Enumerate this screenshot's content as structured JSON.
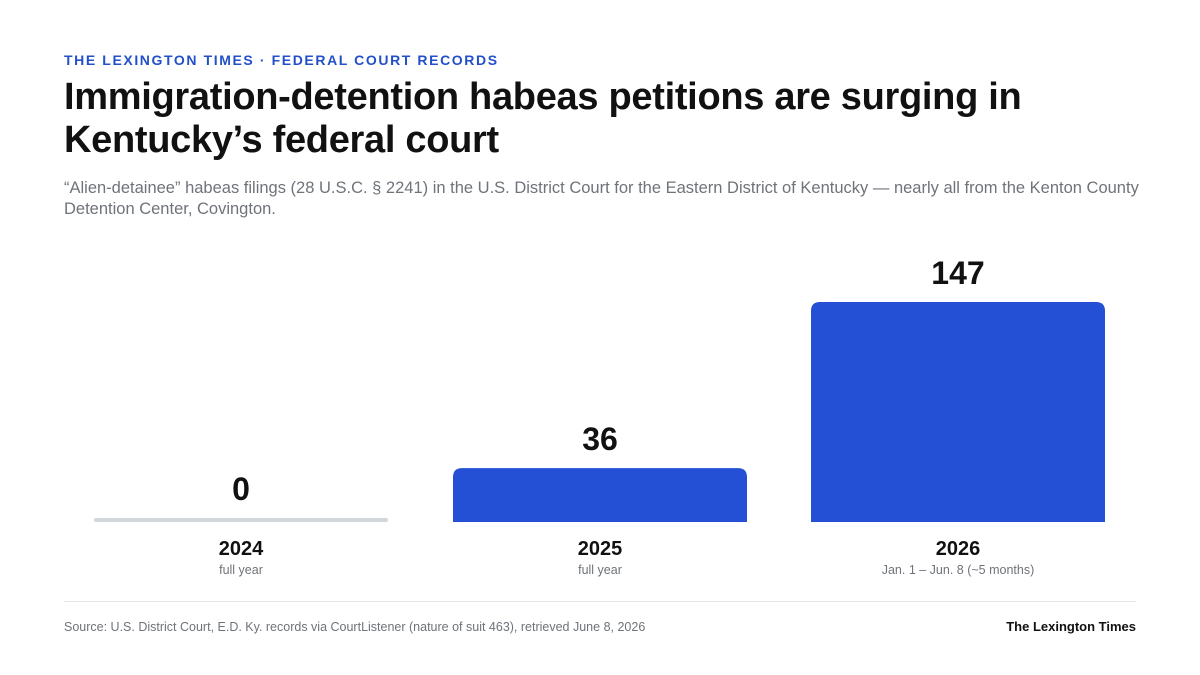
{
  "header": {
    "kicker": "THE LEXINGTON TIMES · FEDERAL COURT RECORDS",
    "title": "Immigration-detention habeas petitions are surging in Kentucky’s federal court",
    "subtitle": "“Alien-detainee” habeas filings (28 U.S.C. § 2241) in the U.S. District Court for the Eastern District of Kentucky — nearly all from the Kenton County Detention Center, Covington."
  },
  "footer": {
    "source": "Source: U.S. District Court, E.D. Ky. records via CourtListener (nature of suit 463), retrieved June 8, 2026",
    "brand": "The Lexington Times"
  },
  "chart_data": {
    "type": "bar",
    "categories": [
      "2024",
      "2025",
      "2026"
    ],
    "sublabels": [
      "full year",
      "full year",
      "Jan. 1 – Jun. 8 (~5 months)"
    ],
    "values": [
      0,
      36,
      147
    ],
    "value_labels": [
      "0",
      "36",
      "147"
    ],
    "title": "",
    "xlabel": "",
    "ylabel": "",
    "ylim": [
      0,
      147
    ],
    "grid": false,
    "legend": "none",
    "colors": {
      "bar": "#2350d4",
      "zero_bar": "#d3d6db",
      "value_text": "#111111",
      "category_text": "#111111",
      "sublabel_text": "#6f737a"
    }
  }
}
